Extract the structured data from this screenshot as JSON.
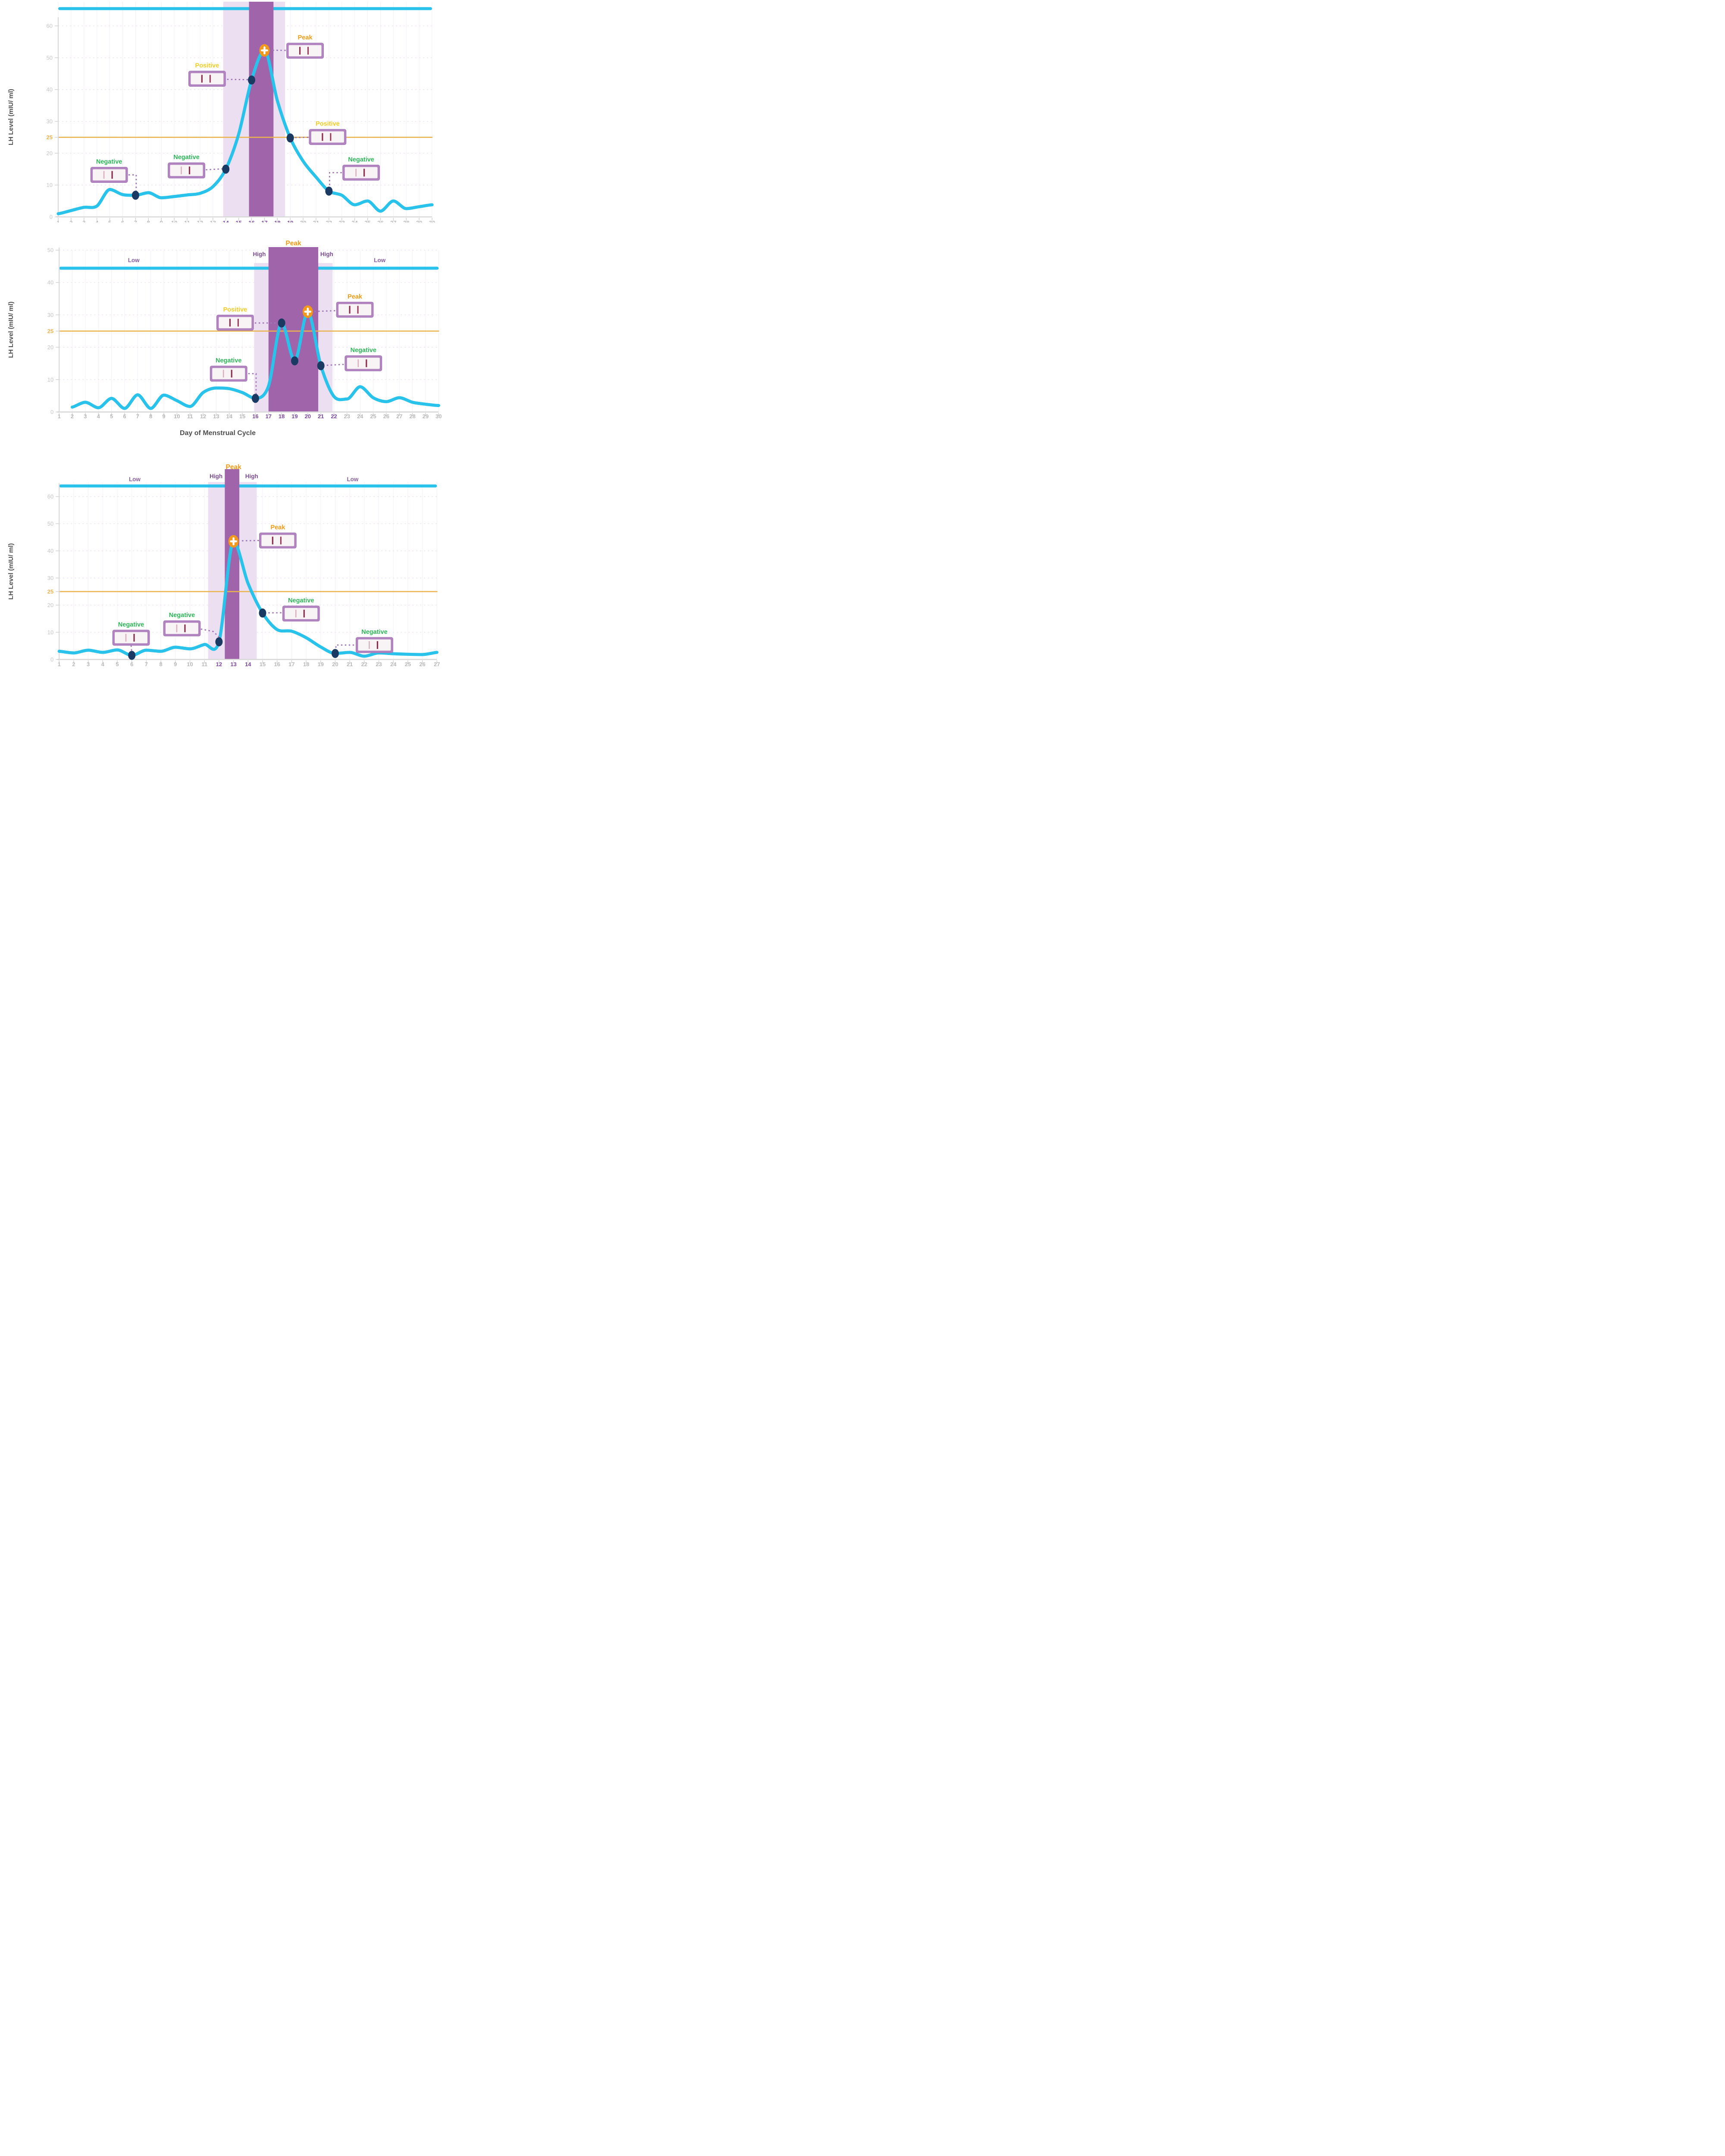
{
  "x_axis_title": "Day of Menstrual Cycle",
  "y_axis_title": "LH Level (mIU/ ml)",
  "threshold_label": "25",
  "colors": {
    "line": "#29c2ea",
    "top_bar": "#29c2ea",
    "dot": "#1a3a64",
    "peak_marker": "#f0991c",
    "threshold_line": "#e9b44e",
    "band_dark": "#a064ab",
    "band_light": "#ecdff2",
    "negative_text": "#2cb757",
    "positive_text": "#f2cd1f",
    "peak_text": "#f09b13",
    "high_text": "#7d4a96",
    "low_text": "#8a5da0",
    "axis": "#d8d8d8",
    "tick_text": "#c6c6c6",
    "x_tick_text": "#b9b9b9",
    "bold_day_text": "#7c4a9c",
    "axis_title_text": "#4f4f4f",
    "strip_border": "#b184c0",
    "strip_face": "#f8f4f5",
    "strip_line_dark": "#8e2f4f",
    "strip_line_dark2": "#a03558",
    "strip_line_faint": "#ddaebf",
    "connector": "#9d78b4",
    "grid_h": "#eadfee",
    "grid_v": "#f4eef8"
  },
  "chart_data": [
    {
      "type": "line",
      "title": "",
      "xlabel": "",
      "ylabel": "LH Level (mIU/ ml)",
      "days": 30,
      "ylim": [
        0,
        68
      ],
      "y_ticks": [
        60,
        50,
        40,
        30,
        25,
        20,
        10,
        0
      ],
      "threshold": 25,
      "x_labels_clipped": true,
      "bold_days": [
        14,
        19
      ],
      "bands": {
        "light": [
          13.8,
          18.6
        ],
        "dark": [
          15.8,
          17.7
        ]
      },
      "headers": [],
      "series": [
        {
          "name": "LH level",
          "x": [
            1,
            2,
            3,
            4,
            5,
            6,
            7,
            8,
            9,
            10,
            11,
            12,
            13,
            14,
            15,
            16,
            17,
            18,
            19,
            20,
            21,
            22,
            23,
            24,
            25,
            26,
            27,
            28,
            29,
            30
          ],
          "values": [
            1.0,
            2.0,
            3.0,
            3.4,
            8.6,
            7.0,
            6.8,
            7.6,
            6.0,
            6.4,
            6.9,
            7.4,
            9.5,
            15,
            26,
            43,
            52.3,
            36.5,
            24.8,
            17.5,
            12.5,
            8.1,
            6.8,
            3.8,
            5.0,
            1.8,
            5.0,
            2.6,
            3.2,
            3.8
          ]
        }
      ],
      "dots": [
        [
          7,
          6.8
        ],
        [
          14,
          15
        ],
        [
          16,
          43
        ],
        [
          19,
          24.8
        ],
        [
          22,
          8.1
        ]
      ],
      "peak_point": [
        17,
        52.3
      ],
      "annotations": [
        {
          "kind": "negative",
          "label": "Negative",
          "strip": [
            4.95,
            13.2
          ],
          "connector": [
            [
              6.45,
              13.2
            ],
            [
              7.05,
              13.2
            ],
            [
              7.05,
              7.8
            ]
          ]
        },
        {
          "kind": "negative",
          "label": "Negative",
          "strip": [
            10.95,
            14.6
          ],
          "connector": [
            [
              12.45,
              14.8
            ],
            [
              13.8,
              15.1
            ]
          ]
        },
        {
          "kind": "positive",
          "label": "Positive",
          "strip": [
            12.55,
            43.4
          ],
          "connector": [
            [
              14.1,
              43.2
            ],
            [
              15.8,
              43.1
            ]
          ]
        },
        {
          "kind": "peak",
          "label": "Peak",
          "strip": [
            20.15,
            52.2
          ],
          "connector": [
            [
              18.65,
              52.3
            ],
            [
              17.4,
              52.35
            ]
          ]
        },
        {
          "kind": "positive",
          "label": "Positive",
          "strip": [
            21.9,
            25.1
          ],
          "connector": [
            [
              20.4,
              25.0
            ],
            [
              19.25,
              24.9
            ]
          ]
        },
        {
          "kind": "negative",
          "label": "Negative",
          "strip": [
            24.5,
            13.9
          ],
          "connector": [
            [
              23.0,
              13.9
            ],
            [
              22.05,
              13.9
            ],
            [
              22.05,
              9.2
            ]
          ]
        }
      ]
    },
    {
      "type": "line",
      "title": "",
      "xlabel": "Day of Menstrual Cycle",
      "ylabel": "LH Level (mIU/ ml)",
      "days": 30,
      "ylim": [
        0,
        55
      ],
      "y_ticks": [
        50,
        40,
        30,
        25,
        20,
        10,
        0
      ],
      "threshold": 25,
      "x_labels_clipped": false,
      "bold_days": [
        16,
        22
      ],
      "bands": {
        "light": [
          15.9,
          21.9
        ],
        "dark": [
          17.0,
          20.8
        ]
      },
      "headers": [
        {
          "text": "Low",
          "kind": "low",
          "day": 6.7
        },
        {
          "text": "High",
          "kind": "high",
          "day": 16.3
        },
        {
          "text": "Peak",
          "kind": "peak",
          "day": 18.9
        },
        {
          "text": "High",
          "kind": "high",
          "day": 21.45
        },
        {
          "text": "Low",
          "kind": "low",
          "day": 25.5
        }
      ],
      "series": [
        {
          "name": "LH level",
          "x": [
            2,
            3,
            4,
            5,
            6,
            7,
            8,
            9,
            10,
            11,
            12,
            13,
            14,
            15,
            16,
            17,
            18,
            19,
            20,
            21,
            22,
            23,
            24,
            25,
            26,
            27,
            28,
            29,
            30
          ],
          "values": [
            1.5,
            3.0,
            1.3,
            4.2,
            1.1,
            5.3,
            1.1,
            5.2,
            3.5,
            1.7,
            6.0,
            7.4,
            7.2,
            6.0,
            4.2,
            8.0,
            27.5,
            15.8,
            31,
            14.3,
            4.8,
            4.0,
            7.8,
            4.4,
            3.2,
            4.4,
            3.0,
            2.4,
            2.0
          ]
        }
      ],
      "dots": [
        [
          16,
          4.2
        ],
        [
          18,
          27.5
        ],
        [
          19,
          15.8
        ],
        [
          21,
          14.3
        ]
      ],
      "peak_point": [
        20,
        31
      ],
      "annotations": [
        {
          "kind": "positive",
          "label": "Positive",
          "strip": [
            14.45,
            27.6
          ],
          "connector": [
            [
              15.95,
              27.5
            ],
            [
              17.8,
              27.5
            ]
          ]
        },
        {
          "kind": "peak",
          "label": "Peak",
          "strip": [
            23.6,
            31.6
          ],
          "connector": [
            [
              22.1,
              31.3
            ],
            [
              20.4,
              31.05
            ]
          ]
        },
        {
          "kind": "negative",
          "label": "Negative",
          "strip": [
            13.95,
            11.85
          ],
          "connector": [
            [
              15.45,
              11.85
            ],
            [
              16.05,
              11.85
            ],
            [
              16.05,
              5.3
            ]
          ]
        },
        {
          "kind": "negative",
          "label": "Negative",
          "strip": [
            24.25,
            15.05
          ],
          "connector": [
            [
              22.75,
              14.7
            ],
            [
              21.3,
              14.4
            ]
          ]
        }
      ]
    },
    {
      "type": "line",
      "title": "",
      "xlabel": "",
      "ylabel": "LH Level (mIU/ ml)",
      "days": 27,
      "ylim": [
        0,
        74
      ],
      "y_ticks": [
        60,
        50,
        40,
        30,
        25,
        20,
        10,
        0
      ],
      "threshold": 25,
      "x_labels_clipped": false,
      "bold_days": [
        12,
        14
      ],
      "bands": {
        "light": [
          11.25,
          14.6
        ],
        "dark": [
          12.4,
          13.4
        ]
      },
      "headers": [
        {
          "text": "Low",
          "kind": "low",
          "day": 6.2
        },
        {
          "text": "High",
          "kind": "high",
          "day": 11.8
        },
        {
          "text": "Peak",
          "kind": "peak",
          "day": 13.0
        },
        {
          "text": "High",
          "kind": "high",
          "day": 14.25
        },
        {
          "text": "Low",
          "kind": "low",
          "day": 21.2
        }
      ],
      "series": [
        {
          "name": "LH level",
          "x": [
            1,
            2,
            3,
            4,
            5,
            6,
            7,
            8,
            9,
            10,
            11,
            12,
            13,
            14,
            15,
            16,
            17,
            18,
            19,
            20,
            21,
            22,
            23,
            24,
            25,
            26,
            27
          ],
          "values": [
            3.0,
            2.4,
            3.4,
            2.6,
            3.5,
            1.5,
            3.4,
            3.0,
            4.5,
            3.9,
            5.5,
            6.5,
            43.5,
            28,
            17.1,
            11,
            10.4,
            8.0,
            4.6,
            2.2,
            2.6,
            1.2,
            2.4,
            2.1,
            1.9,
            1.8,
            2.6
          ]
        }
      ],
      "dots": [
        [
          6,
          1.5
        ],
        [
          12,
          6.5
        ],
        [
          15,
          17.1
        ],
        [
          20,
          2.2
        ]
      ],
      "peak_point": [
        13,
        43.5
      ],
      "annotations": [
        {
          "kind": "negative",
          "label": "Negative",
          "strip": [
            5.95,
            8.0
          ],
          "connector": [
            [
              5.95,
              5.2
            ],
            [
              6.0,
              2.4
            ]
          ]
        },
        {
          "kind": "negative",
          "label": "Negative",
          "strip": [
            9.45,
            11.45
          ],
          "connector": [
            [
              10.75,
              11.2
            ],
            [
              11.6,
              10.3
            ],
            [
              12.0,
              8.3
            ],
            [
              12.0,
              7.2
            ]
          ]
        },
        {
          "kind": "peak",
          "label": "Peak",
          "strip": [
            16.05,
            43.8
          ],
          "connector": [
            [
              14.75,
              43.8
            ],
            [
              13.45,
              43.7
            ]
          ]
        },
        {
          "kind": "negative",
          "label": "Negative",
          "strip": [
            17.65,
            16.9
          ],
          "connector": [
            [
              16.3,
              17.2
            ],
            [
              15.25,
              17.15
            ]
          ]
        },
        {
          "kind": "negative",
          "label": "Negative",
          "strip": [
            22.7,
            5.3
          ],
          "connector": [
            [
              21.3,
              5.3
            ],
            [
              20.05,
              5.3
            ],
            [
              20.05,
              2.9
            ]
          ]
        }
      ]
    }
  ]
}
